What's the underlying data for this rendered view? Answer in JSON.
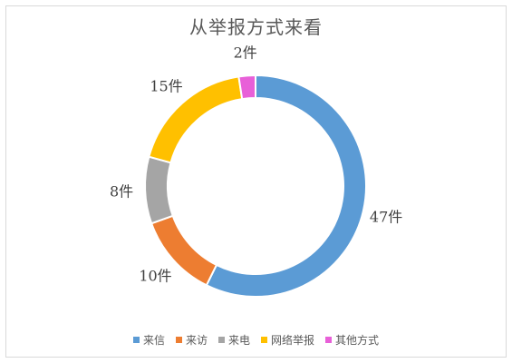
{
  "chart_data": {
    "type": "pie",
    "subtype": "donut",
    "title": "从举报方式来看",
    "categories": [
      "来信",
      "来访",
      "来电",
      "网络举报",
      "其他方式"
    ],
    "values": [
      47,
      10,
      8,
      15,
      2
    ],
    "data_labels": [
      "47件",
      "10件",
      "8件",
      "15件",
      "2件"
    ],
    "colors": [
      "#5B9BD5",
      "#ED7D31",
      "#A5A5A5",
      "#FFC000",
      "#E860D8"
    ],
    "legend_position": "bottom"
  }
}
